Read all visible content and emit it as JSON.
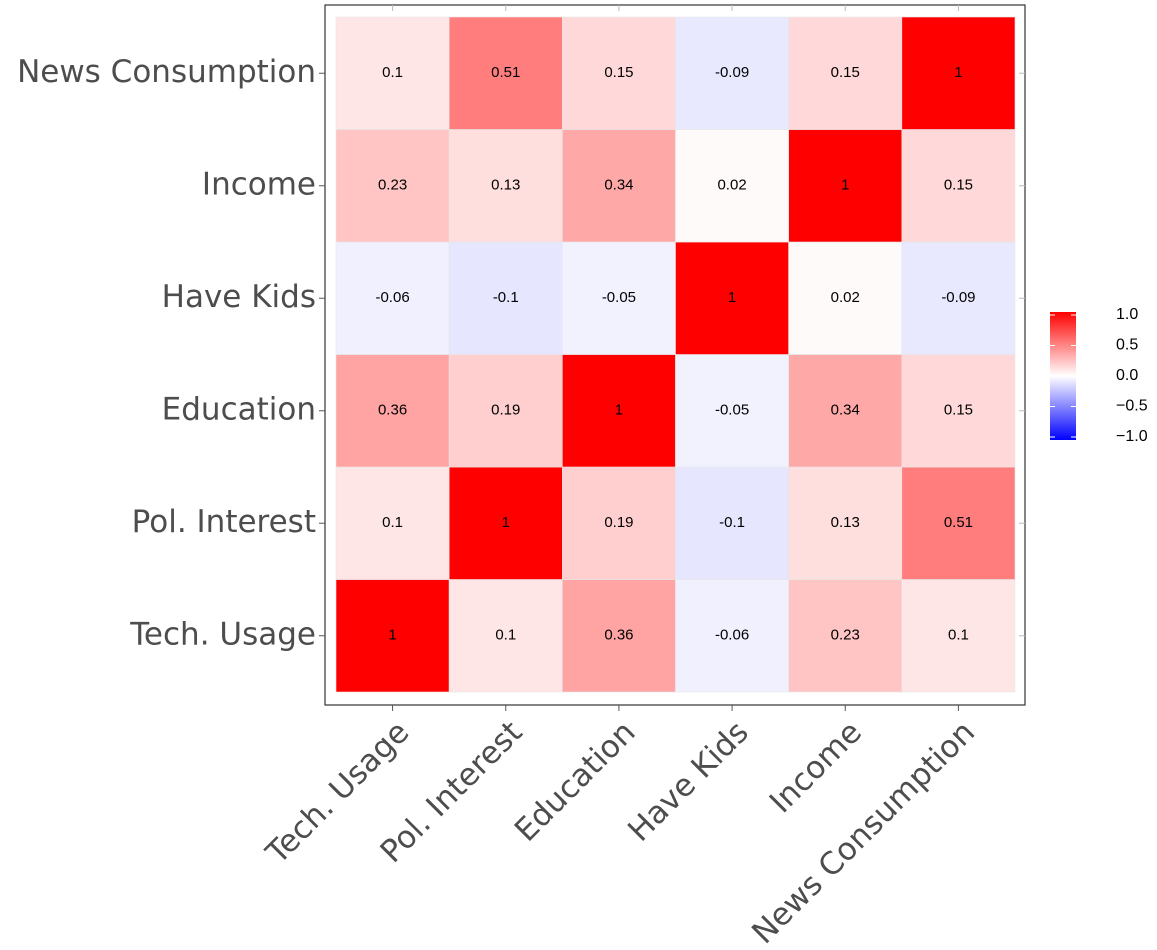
{
  "chart_data": {
    "type": "heatmap",
    "x_categories": [
      "Tech. Usage",
      "Pol. Interest",
      "Education",
      "Have Kids",
      "Income",
      "News Consumption"
    ],
    "y_categories": [
      "Tech. Usage",
      "Pol. Interest",
      "Education",
      "Have Kids",
      "Income",
      "News Consumption"
    ],
    "values": [
      [
        1,
        0.1,
        0.36,
        -0.06,
        0.23,
        0.1
      ],
      [
        0.1,
        1,
        0.19,
        -0.1,
        0.13,
        0.51
      ],
      [
        0.36,
        0.19,
        1,
        -0.05,
        0.34,
        0.15
      ],
      [
        -0.06,
        -0.1,
        -0.05,
        1,
        0.02,
        -0.09
      ],
      [
        0.23,
        0.13,
        0.34,
        0.02,
        1,
        0.15
      ],
      [
        0.1,
        0.51,
        0.15,
        -0.09,
        0.15,
        1
      ]
    ],
    "colorscale": {
      "low": "#0000ff",
      "mid": "#ffffff",
      "high": "#ff0000"
    },
    "zlim": [
      -1,
      1
    ],
    "zticks": [
      {
        "value": 1,
        "label": "1.0"
      },
      {
        "value": 0.5,
        "label": "0.5"
      },
      {
        "value": 0,
        "label": "0.0"
      },
      {
        "value": -0.5,
        "label": "−0.5"
      },
      {
        "value": -1,
        "label": "−1.0"
      }
    ]
  }
}
